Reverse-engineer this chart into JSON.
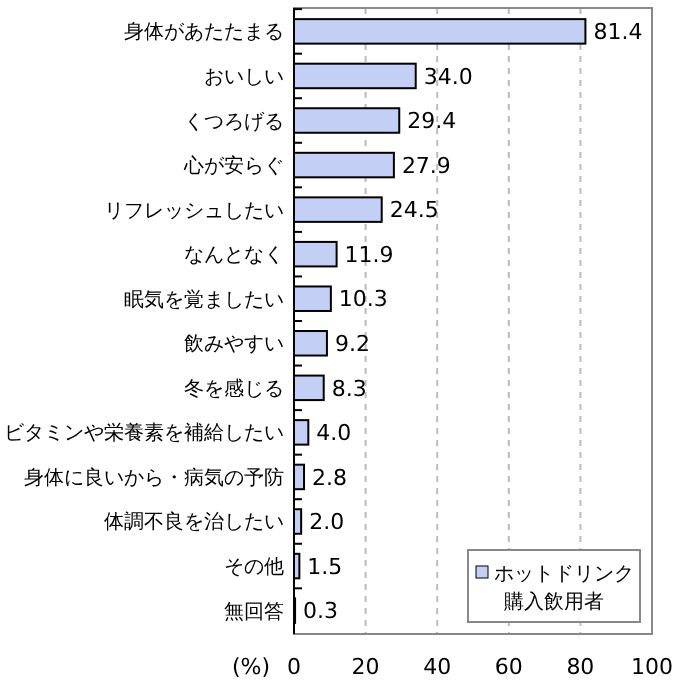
{
  "chart_data": {
    "type": "bar",
    "orientation": "horizontal",
    "categories": [
      "身体があたたまる",
      "おいしい",
      "くつろげる",
      "心が安らぐ",
      "リフレッシュしたい",
      "なんとなく",
      "眠気を覚ましたい",
      "飲みやすい",
      "冬を感じる",
      "ビタミンや栄養素を補給したい",
      "身体に良いから・病気の予防",
      "体調不良を治したい",
      "その他",
      "無回答"
    ],
    "series": [
      {
        "name": "ホットドリンク購入飲用者",
        "color": "#c3cff5",
        "values": [
          81.4,
          34.0,
          29.4,
          27.9,
          24.5,
          11.9,
          10.3,
          9.2,
          8.3,
          4.0,
          2.8,
          2.0,
          1.5,
          0.3
        ],
        "value_labels": [
          "81.4",
          "34.0",
          "29.4",
          "27.9",
          "24.5",
          "11.9",
          "10.3",
          "9.2",
          "8.3",
          "4.0",
          "2.8",
          "2.0",
          "1.5",
          "0.3"
        ]
      }
    ],
    "xlabel": "(%)",
    "xlim": [
      0,
      100
    ],
    "xticks": [
      0,
      20,
      40,
      60,
      80,
      100
    ],
    "grid": "x",
    "legend": "bottom right"
  }
}
